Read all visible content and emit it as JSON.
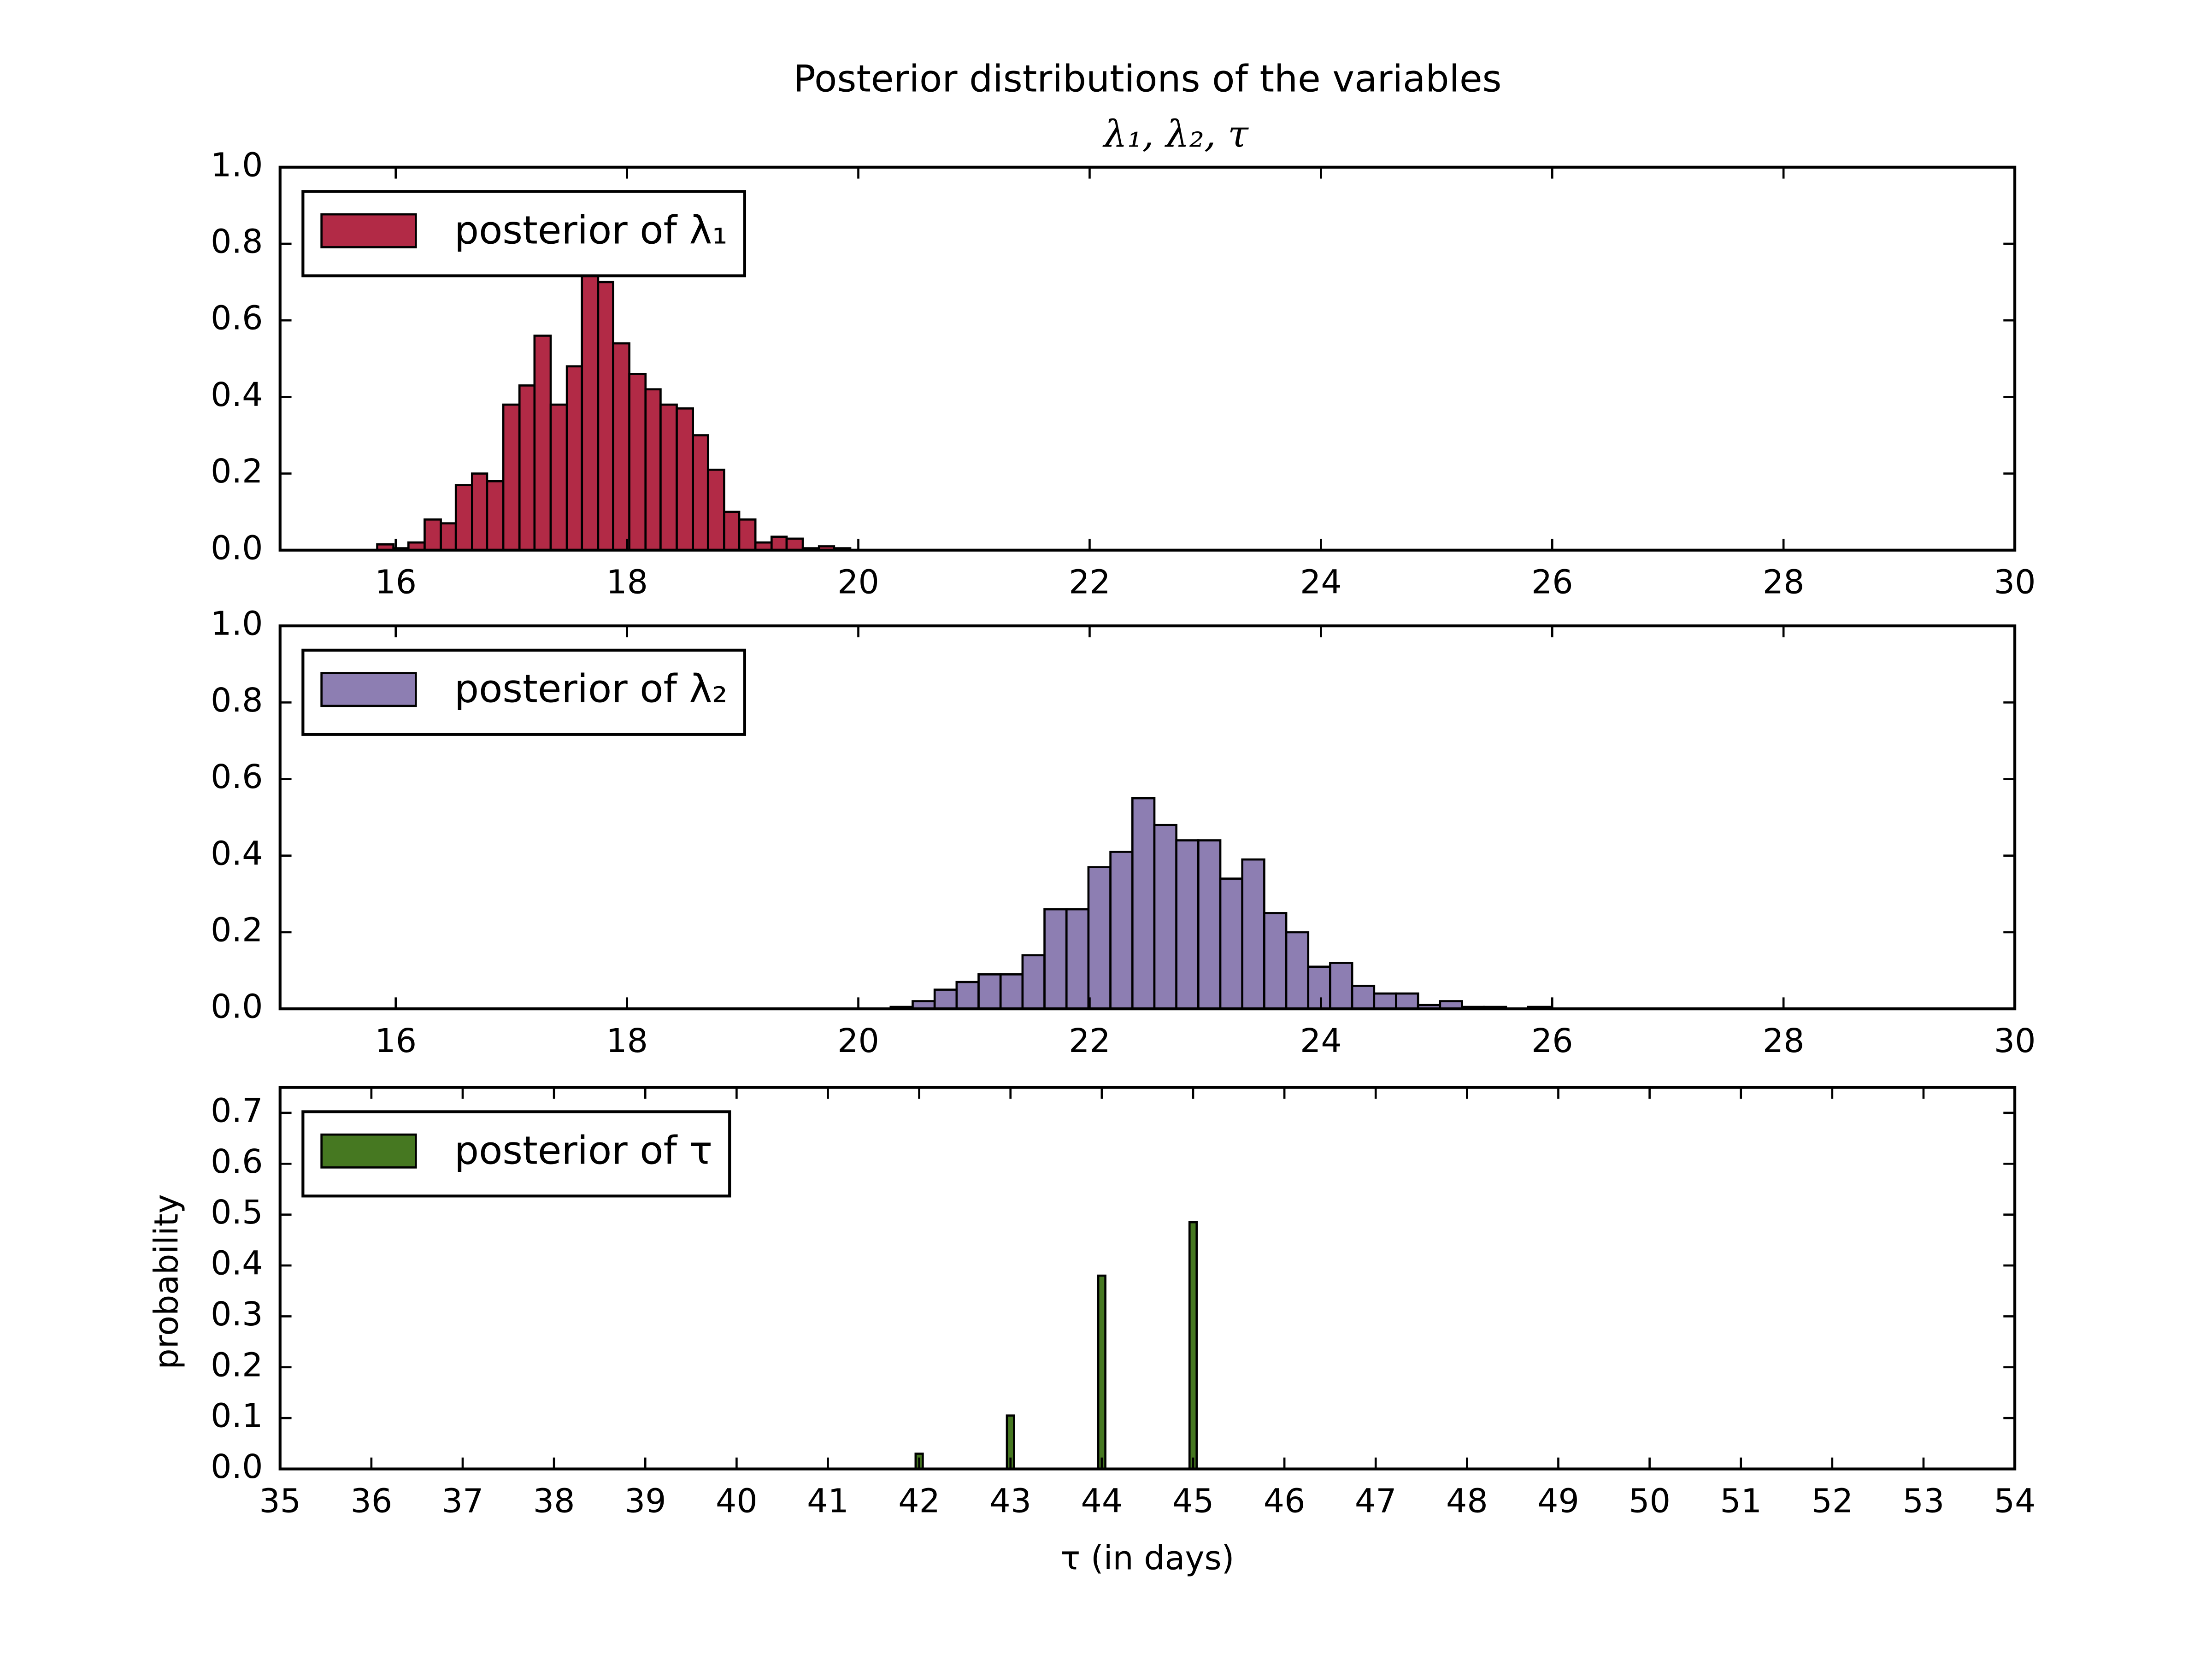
{
  "chart_data": [
    {
      "type": "histogram",
      "title": "Posterior distributions of the variables",
      "subtitle": "λ₁, λ₂, τ",
      "bins": [
        15.84,
        15.98,
        16.11,
        16.25,
        16.39,
        16.52,
        16.66,
        16.79,
        16.93,
        17.07,
        17.2,
        17.34,
        17.48,
        17.61,
        17.75,
        17.88,
        18.02,
        18.16,
        18.29,
        18.43,
        18.57,
        18.7,
        18.84,
        18.97,
        19.11,
        19.25,
        19.38,
        19.52,
        19.66,
        19.79,
        19.93
      ],
      "series": [
        {
          "name": "posterior of λ₁",
          "color": "#b22a46",
          "values": [
            0.015,
            0.005,
            0.02,
            0.08,
            0.07,
            0.17,
            0.2,
            0.18,
            0.38,
            0.43,
            0.56,
            0.38,
            0.48,
            0.72,
            0.7,
            0.54,
            0.46,
            0.42,
            0.38,
            0.37,
            0.3,
            0.21,
            0.1,
            0.08,
            0.02,
            0.035,
            0.03,
            0.005,
            0.01,
            0.005
          ]
        }
      ],
      "xlim": [
        15,
        30
      ],
      "xticks": [
        16,
        18,
        20,
        22,
        24,
        26,
        28,
        30
      ],
      "ylim": [
        0,
        1
      ],
      "yticks": [
        {
          "value": 0,
          "label": "0.0"
        },
        0.2,
        0.4,
        0.6,
        0.8,
        {
          "value": 1,
          "label": "1.0"
        }
      ],
      "legend": "upper left"
    },
    {
      "type": "histogram",
      "bins": [
        20.28,
        20.47,
        20.66,
        20.85,
        21.04,
        21.23,
        21.42,
        21.61,
        21.8,
        21.99,
        22.18,
        22.37,
        22.56,
        22.75,
        22.94,
        23.13,
        23.32,
        23.51,
        23.7,
        23.89,
        24.08,
        24.27,
        24.46,
        24.65,
        24.84,
        25.03,
        25.22,
        25.41,
        25.6,
        25.79,
        25.98
      ],
      "series": [
        {
          "name": "posterior of λ₂",
          "color": "#8d7eb2",
          "values": [
            0.005,
            0.02,
            0.05,
            0.07,
            0.09,
            0.09,
            0.14,
            0.26,
            0.26,
            0.37,
            0.41,
            0.55,
            0.48,
            0.44,
            0.44,
            0.34,
            0.39,
            0.25,
            0.2,
            0.11,
            0.12,
            0.06,
            0.04,
            0.04,
            0.01,
            0.02,
            0.005,
            0.005,
            0,
            0.005
          ]
        }
      ],
      "xlim": [
        15,
        30
      ],
      "xticks": [
        16,
        18,
        20,
        22,
        24,
        26,
        28,
        30
      ],
      "ylim": [
        0,
        1
      ],
      "yticks": [
        {
          "value": 0,
          "label": "0.0"
        },
        0.2,
        0.4,
        0.6,
        0.8,
        {
          "value": 1,
          "label": "1.0"
        }
      ],
      "legend": "upper left"
    },
    {
      "type": "bar",
      "xlabel": "τ (in days)",
      "ylabel": "probability",
      "x": [
        42,
        43,
        44,
        45
      ],
      "series": [
        {
          "name": "posterior of τ",
          "color": "#467821",
          "values": [
            0.03,
            0.105,
            0.38,
            0.485
          ]
        }
      ],
      "xlim": [
        35,
        54
      ],
      "xticks": [
        35,
        36,
        37,
        38,
        39,
        40,
        41,
        42,
        43,
        44,
        45,
        46,
        47,
        48,
        49,
        50,
        51,
        52,
        53,
        54
      ],
      "ylim": [
        0,
        0.75
      ],
      "yticks": [
        {
          "value": 0,
          "label": "0.0"
        },
        0.1,
        0.2,
        0.3,
        0.4,
        0.5,
        0.6,
        0.7
      ],
      "legend": "upper left"
    }
  ]
}
